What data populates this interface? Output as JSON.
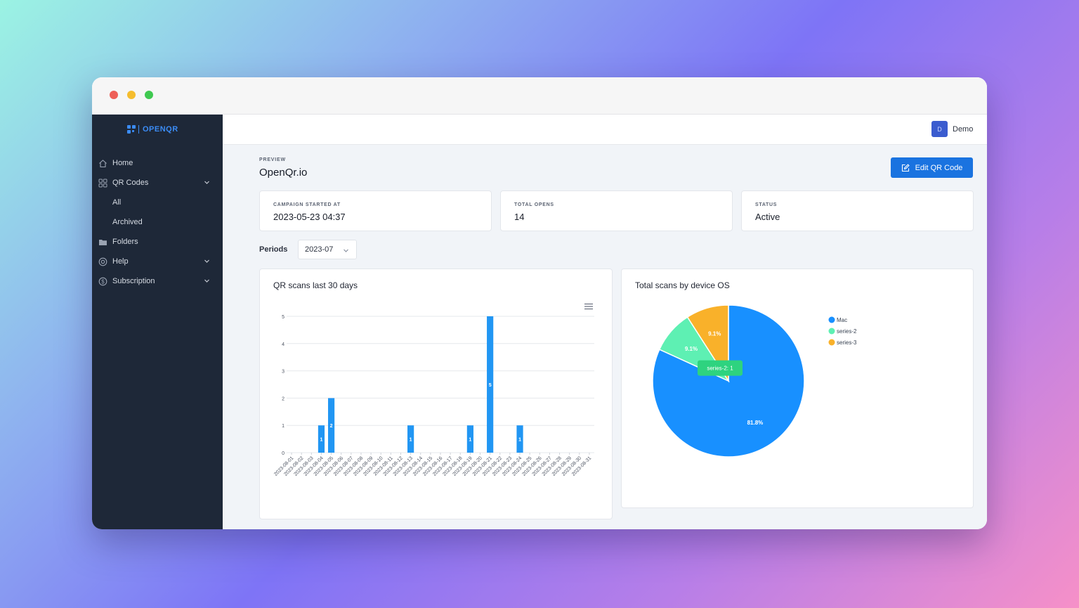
{
  "window": {
    "controls": [
      "close",
      "minimize",
      "zoom"
    ]
  },
  "sidebar": {
    "logo_text": "OPENQR",
    "items": [
      {
        "label": "Home",
        "icon": "home-icon"
      },
      {
        "label": "QR Codes",
        "icon": "qr-icon",
        "expandable": true
      },
      {
        "label": "All"
      },
      {
        "label": "Archived"
      },
      {
        "label": "Folders",
        "icon": "folder-icon"
      },
      {
        "label": "Help",
        "icon": "help-icon",
        "expandable": true
      },
      {
        "label": "Subscription",
        "icon": "dollar-icon",
        "expandable": true
      }
    ]
  },
  "topbar": {
    "user_initial": "D",
    "user_name": "Demo"
  },
  "page": {
    "preview_label": "PREVIEW",
    "title": "OpenQr.io",
    "edit_button": "Edit QR Code"
  },
  "stats": [
    {
      "label": "CAMPAIGN STARTED AT",
      "value": "2023-05-23 04:37"
    },
    {
      "label": "TOTAL OPENS",
      "value": "14"
    },
    {
      "label": "STATUS",
      "value": "Active"
    }
  ],
  "periods": {
    "label": "Periods",
    "selected": "2023-07"
  },
  "colors": {
    "accent": "#1a73e0",
    "bar": "#2196f3",
    "mac": "#1890ff",
    "series2": "#5ef0b3",
    "series3": "#f9b12a",
    "sidebar_bg": "#1e2838"
  },
  "chart_data": [
    {
      "type": "bar",
      "title": "QR scans last 30 days",
      "categories": [
        "2023-08-01",
        "2023-08-02",
        "2023-08-03",
        "2023-08-04",
        "2023-08-05",
        "2023-08-06",
        "2023-08-07",
        "2023-08-08",
        "2023-08-09",
        "2023-08-10",
        "2023-08-11",
        "2023-08-12",
        "2023-08-13",
        "2023-08-14",
        "2023-08-15",
        "2023-08-16",
        "2023-08-17",
        "2023-08-18",
        "2023-08-19",
        "2023-08-20",
        "2023-08-21",
        "2023-08-22",
        "2023-08-23",
        "2023-08-24",
        "2023-08-25",
        "2023-08-26",
        "2023-08-27",
        "2023-08-28",
        "2023-08-29",
        "2023-08-30",
        "2023-08-31"
      ],
      "values": [
        0,
        0,
        0,
        1,
        2,
        0,
        0,
        0,
        0,
        0,
        0,
        0,
        1,
        0,
        0,
        0,
        0,
        0,
        1,
        0,
        5,
        0,
        0,
        1,
        0,
        0,
        0,
        0,
        0,
        0,
        0
      ],
      "ylim": [
        0,
        5
      ],
      "yticks": [
        0,
        1,
        2,
        3,
        4,
        5
      ],
      "grid": true
    },
    {
      "type": "pie",
      "title": "Total scans by device OS",
      "series": [
        {
          "name": "Mac",
          "value": 9,
          "percent_label": "81.8%"
        },
        {
          "name": "series-2",
          "value": 1,
          "percent_label": "9.1%"
        },
        {
          "name": "series-3",
          "value": 1,
          "percent_label": "9.1%"
        }
      ],
      "tooltip": {
        "series": "series-2",
        "text": "series-2:  1"
      },
      "legend": "right"
    }
  ]
}
